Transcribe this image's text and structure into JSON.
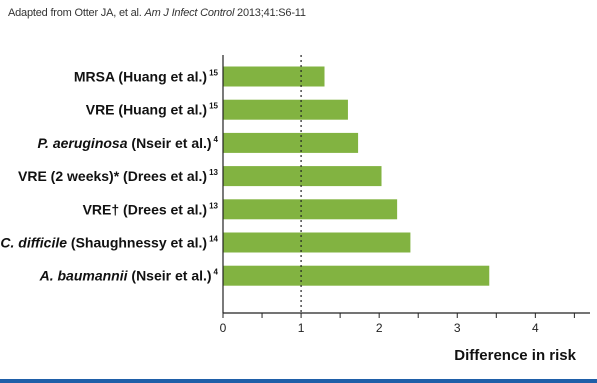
{
  "source": {
    "prefix": "Adapted from Otter JA, et al. ",
    "journal": "Am J Infect Control",
    "suffix": " 2013;41:S6-11"
  },
  "colors": {
    "bar": "#82b341",
    "axis": "#222222",
    "reference_line": "#222222",
    "footer": "#1f5fa8"
  },
  "chart_data": {
    "type": "bar",
    "orientation": "horizontal",
    "categories": [
      {
        "italic": "",
        "text": "MRSA (Huang et al.)",
        "sup": "15"
      },
      {
        "italic": "",
        "text": "VRE (Huang et al.)",
        "sup": "15"
      },
      {
        "italic": "P. aeruginosa",
        "text": " (Nseir et al.)",
        "sup": "4"
      },
      {
        "italic": "",
        "text": "VRE (2 weeks)* (Drees et al.)",
        "sup": "13"
      },
      {
        "italic": "",
        "text": "VRE† (Drees et al.)",
        "sup": "13"
      },
      {
        "italic": "C. difficile",
        "text": " (Shaughnessy et al.)",
        "sup": "14"
      },
      {
        "italic": "A. baumannii",
        "text": " (Nseir et al.)",
        "sup": "4"
      }
    ],
    "values": [
      1.3,
      1.6,
      1.73,
      2.03,
      2.23,
      2.4,
      3.41
    ],
    "xlim": [
      0,
      4.7
    ],
    "xticks": [
      0,
      1,
      2,
      3,
      4
    ],
    "minor_ticks": [
      0.5,
      1.5,
      2.5,
      3.5,
      4.5
    ],
    "reference_line": 1,
    "xlabel": "Difference in risk",
    "ylabel": "",
    "title": "",
    "grid": false,
    "legend": "none"
  }
}
